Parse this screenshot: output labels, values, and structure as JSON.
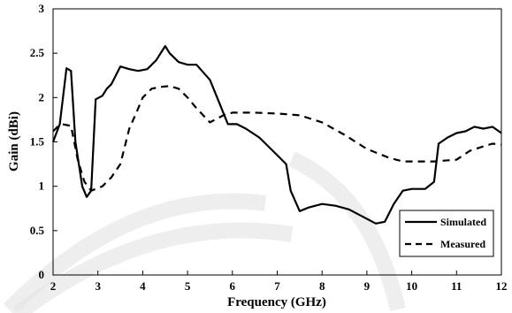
{
  "chart_data": {
    "type": "line",
    "title": "",
    "xlabel": "Frequency (GHz)",
    "ylabel": "Gain (dBi)",
    "xlim": [
      2,
      12
    ],
    "ylim": [
      0,
      3
    ],
    "xticks": [
      2,
      3,
      4,
      5,
      6,
      7,
      8,
      9,
      10,
      11,
      12
    ],
    "yticks": [
      0,
      0.5,
      1,
      1.5,
      2,
      2.5,
      3
    ],
    "xtick_labels": [
      "2",
      "3",
      "4",
      "5",
      "6",
      "7",
      "8",
      "9",
      "10",
      "11",
      "12"
    ],
    "ytick_labels": [
      "0",
      "0.5",
      "1",
      "1.5",
      "2",
      "2.5",
      "3"
    ],
    "grid": false,
    "legend_position": "bottom-right",
    "series": [
      {
        "name": "Simulated",
        "style": "solid",
        "x": [
          2.0,
          2.15,
          2.3,
          2.4,
          2.5,
          2.65,
          2.75,
          2.85,
          2.95,
          3.1,
          3.2,
          3.3,
          3.4,
          3.5,
          3.7,
          3.9,
          4.1,
          4.3,
          4.5,
          4.6,
          4.8,
          5.0,
          5.2,
          5.5,
          5.7,
          5.9,
          6.1,
          6.3,
          6.6,
          7.0,
          7.2,
          7.3,
          7.5,
          7.7,
          8.0,
          8.3,
          8.6,
          8.9,
          9.2,
          9.4,
          9.6,
          9.8,
          10.0,
          10.3,
          10.5,
          10.6,
          10.8,
          11.0,
          11.2,
          11.4,
          11.6,
          11.8,
          12.0
        ],
        "values": [
          1.5,
          1.7,
          2.33,
          2.3,
          1.5,
          1.0,
          0.88,
          0.95,
          1.98,
          2.02,
          2.1,
          2.15,
          2.25,
          2.35,
          2.32,
          2.3,
          2.32,
          2.42,
          2.58,
          2.5,
          2.4,
          2.37,
          2.37,
          2.2,
          1.95,
          1.7,
          1.7,
          1.65,
          1.55,
          1.35,
          1.25,
          0.95,
          0.72,
          0.76,
          0.8,
          0.78,
          0.74,
          0.66,
          0.58,
          0.6,
          0.8,
          0.95,
          0.97,
          0.97,
          1.05,
          1.48,
          1.55,
          1.6,
          1.62,
          1.67,
          1.65,
          1.67,
          1.6
        ]
      },
      {
        "name": "Measured",
        "style": "dashed",
        "x": [
          2.0,
          2.1,
          2.2,
          2.4,
          2.55,
          2.7,
          2.85,
          3.1,
          3.3,
          3.5,
          3.7,
          3.85,
          4.0,
          4.2,
          4.4,
          4.6,
          4.8,
          5.0,
          5.2,
          5.5,
          5.8,
          6.0,
          6.5,
          7.0,
          7.5,
          8.0,
          8.5,
          9.0,
          9.5,
          9.8,
          10.0,
          10.5,
          11.0,
          11.3,
          11.6,
          11.8,
          12.0
        ],
        "values": [
          1.62,
          1.67,
          1.7,
          1.68,
          1.3,
          1.05,
          0.95,
          1.0,
          1.1,
          1.25,
          1.65,
          1.82,
          2.0,
          2.1,
          2.12,
          2.13,
          2.1,
          2.0,
          1.88,
          1.72,
          1.8,
          1.83,
          1.83,
          1.82,
          1.8,
          1.72,
          1.58,
          1.42,
          1.32,
          1.28,
          1.28,
          1.28,
          1.3,
          1.4,
          1.45,
          1.48,
          1.47
        ]
      }
    ]
  }
}
